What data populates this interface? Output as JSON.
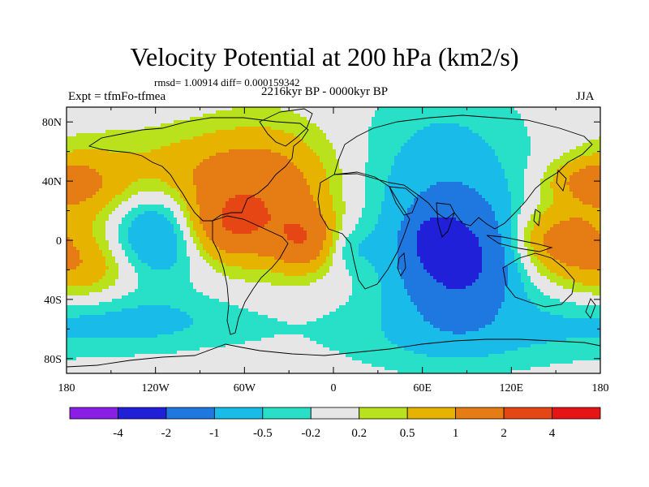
{
  "title": "Velocity Potential at 200 hPa (km2/s)",
  "stats": "rmsd= 1.00914 diff= 0.000159342",
  "experiment": "Expt = tfmFo-tfmea",
  "period": "2216kyr BP - 0000kyr BP",
  "season": "JJA",
  "lat_ticks": [
    {
      "value": 80,
      "label": "80N"
    },
    {
      "value": 40,
      "label": "40N"
    },
    {
      "value": 0,
      "label": "0"
    },
    {
      "value": -40,
      "label": "40S"
    },
    {
      "value": -80,
      "label": "80S"
    }
  ],
  "lon_ticks": [
    {
      "value": -180,
      "label": "180"
    },
    {
      "value": -120,
      "label": "120W"
    },
    {
      "value": -60,
      "label": "60W"
    },
    {
      "value": 0,
      "label": "0"
    },
    {
      "value": 60,
      "label": "60E"
    },
    {
      "value": 120,
      "label": "120E"
    },
    {
      "value": 180,
      "label": "180"
    }
  ],
  "colorbar": {
    "colors": [
      "#8a1ee6",
      "#2020d8",
      "#1e78e0",
      "#19bce8",
      "#28e0c8",
      "#e6e6e6",
      "#b9e21c",
      "#e6b400",
      "#e67d14",
      "#e64614",
      "#e61414"
    ],
    "labels": [
      "-4",
      "-2",
      "-1",
      "-0.5",
      "-0.2",
      "0.2",
      "0.5",
      "1",
      "2",
      "4"
    ]
  },
  "field": {
    "background_level": 0.0,
    "centers": [
      {
        "lon": -100,
        "lat": 45,
        "amp": 0.7,
        "slon": 40,
        "slat": 20
      },
      {
        "lon": -170,
        "lat": 35,
        "amp": 0.8,
        "slon": 25,
        "slat": 20
      },
      {
        "lon": -170,
        "lat": -18,
        "amp": 0.9,
        "slon": 25,
        "slat": 16
      },
      {
        "lon": -135,
        "lat": -55,
        "amp": -0.6,
        "slon": 60,
        "slat": 14
      },
      {
        "lon": -120,
        "lat": 5,
        "amp": -1.2,
        "slon": 22,
        "slat": 22
      },
      {
        "lon": -45,
        "lat": 30,
        "amp": 1.4,
        "slon": 32,
        "slat": 30
      },
      {
        "lon": -70,
        "lat": 10,
        "amp": 1.3,
        "slon": 20,
        "slat": 15
      },
      {
        "lon": -20,
        "lat": 0,
        "amp": 1.4,
        "slon": 14,
        "slat": 14
      },
      {
        "lon": 10,
        "lat": -5,
        "amp": -0.4,
        "slon": 12,
        "slat": 10
      },
      {
        "lon": 75,
        "lat": 20,
        "amp": -0.9,
        "slon": 40,
        "slat": 55
      },
      {
        "lon": 85,
        "lat": -15,
        "amp": -1.8,
        "slon": 25,
        "slat": 25
      },
      {
        "lon": 70,
        "lat": 0,
        "amp": -1.5,
        "slon": 10,
        "slat": 10
      },
      {
        "lon": 90,
        "lat": -65,
        "amp": -0.4,
        "slon": 70,
        "slat": 16
      },
      {
        "lon": 150,
        "lat": 0,
        "amp": 1.3,
        "slon": 22,
        "slat": 16
      },
      {
        "lon": 170,
        "lat": 40,
        "amp": 0.8,
        "slon": 20,
        "slat": 10
      }
    ]
  }
}
